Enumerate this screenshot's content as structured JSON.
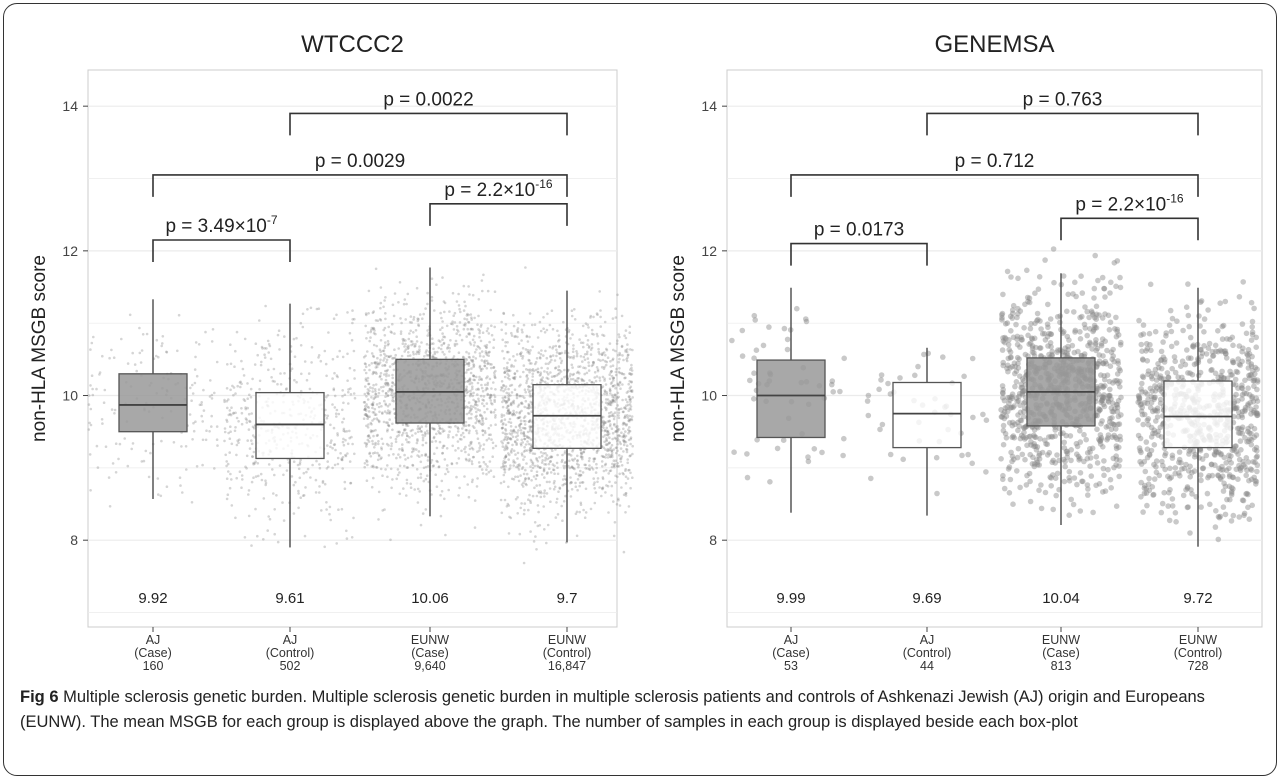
{
  "figure": {
    "caption_label": "Fig 6",
    "caption_text": "Multiple sclerosis genetic burden. Multiple sclerosis genetic burden in multiple sclerosis patients and controls of Ashkenazi Jewish (AJ) origin and Europeans (EUNW). The mean MSGB for each group is displayed above the graph. The number of samples in each group is displayed beside each box-plot"
  },
  "colors": {
    "case_fill": "#999999",
    "control_fill": "#ffffff",
    "panel_bg": "#ffffff",
    "panel_border": "#cccccc",
    "grid": "#ebebeb",
    "box_stroke": "#555555",
    "point": "#888888"
  },
  "chart_data": [
    {
      "type": "box",
      "title": "WTCCC2",
      "ylabel": "non-HLA MSGB score",
      "xlabel": "",
      "ylim": [
        6.8,
        14.5
      ],
      "yticks": [
        8,
        10,
        12,
        14
      ],
      "grid": true,
      "point_style": "small",
      "categories": [
        {
          "name": "AJ",
          "group": "(Case)",
          "n": "160",
          "mean_label": "9.92",
          "fill": "case",
          "stats": {
            "min": 8.57,
            "q1": 9.5,
            "median": 9.87,
            "q3": 10.3,
            "max": 11.33
          },
          "points_range": [
            7.8,
            11.35
          ],
          "n_points": 160
        },
        {
          "name": "AJ",
          "group": "(Control)",
          "n": "502",
          "mean_label": "9.61",
          "fill": "control",
          "stats": {
            "min": 7.9,
            "q1": 9.13,
            "median": 9.6,
            "q3": 10.04,
            "max": 11.27
          },
          "points_range": [
            7.8,
            11.75
          ],
          "n_points": 502
        },
        {
          "name": "EUNW",
          "group": "(Case)",
          "n": "9,640",
          "mean_label": "10.06",
          "fill": "case",
          "stats": {
            "min": 8.33,
            "q1": 9.62,
            "median": 10.05,
            "q3": 10.5,
            "max": 11.77
          },
          "points_range": [
            7.8,
            12.4
          ],
          "n_points": 1400
        },
        {
          "name": "EUNW",
          "group": "(Control)",
          "n": "16,847",
          "mean_label": "9.7",
          "fill": "control",
          "stats": {
            "min": 7.97,
            "q1": 9.27,
            "median": 9.72,
            "q3": 10.15,
            "max": 11.45
          },
          "points_range": [
            7.3,
            12.1
          ],
          "n_points": 1800
        }
      ],
      "comparisons": [
        {
          "from": 0,
          "to": 1,
          "y": 12.15,
          "label": "p = 3.49×10",
          "sup": "-7"
        },
        {
          "from": 0,
          "to": 3,
          "y": 13.05,
          "label": "p = 0.0029",
          "sup": ""
        },
        {
          "from": 2,
          "to": 3,
          "y": 12.65,
          "label": "p = 2.2×10",
          "sup": "-16"
        },
        {
          "from": 1,
          "to": 3,
          "y": 13.9,
          "label": "p = 0.0022",
          "sup": ""
        }
      ]
    },
    {
      "type": "box",
      "title": "GENEMSA",
      "ylabel": "non-HLA MSGB score",
      "xlabel": "",
      "ylim": [
        6.8,
        14.5
      ],
      "yticks": [
        8,
        10,
        12,
        14
      ],
      "grid": true,
      "point_style": "large",
      "categories": [
        {
          "name": "AJ",
          "group": "(Case)",
          "n": "53",
          "mean_label": "9.99",
          "fill": "case",
          "stats": {
            "min": 8.38,
            "q1": 9.42,
            "median": 10.0,
            "q3": 10.49,
            "max": 11.49
          },
          "points_range": [
            8.3,
            11.5
          ],
          "n_points": 53
        },
        {
          "name": "AJ",
          "group": "(Control)",
          "n": "44",
          "mean_label": "9.69",
          "fill": "control",
          "stats": {
            "min": 8.34,
            "q1": 9.28,
            "median": 9.75,
            "q3": 10.18,
            "max": 10.66
          },
          "points_range": [
            8.6,
            10.7
          ],
          "n_points": 44
        },
        {
          "name": "EUNW",
          "group": "(Case)",
          "n": "813",
          "mean_label": "10.04",
          "fill": "case",
          "stats": {
            "min": 8.21,
            "q1": 9.58,
            "median": 10.05,
            "q3": 10.52,
            "max": 11.69
          },
          "points_range": [
            7.4,
            12.2
          ],
          "n_points": 813
        },
        {
          "name": "EUNW",
          "group": "(Control)",
          "n": "728",
          "mean_label": "9.72",
          "fill": "control",
          "stats": {
            "min": 7.91,
            "q1": 9.28,
            "median": 9.71,
            "q3": 10.2,
            "max": 11.49
          },
          "points_range": [
            7.7,
            11.7
          ],
          "n_points": 728
        }
      ],
      "comparisons": [
        {
          "from": 0,
          "to": 1,
          "y": 12.1,
          "label": "p = 0.0173",
          "sup": ""
        },
        {
          "from": 0,
          "to": 3,
          "y": 13.05,
          "label": "p = 0.712",
          "sup": ""
        },
        {
          "from": 2,
          "to": 3,
          "y": 12.45,
          "label": "p = 2.2×10",
          "sup": "-16"
        },
        {
          "from": 1,
          "to": 3,
          "y": 13.9,
          "label": "p = 0.763",
          "sup": ""
        }
      ]
    }
  ]
}
